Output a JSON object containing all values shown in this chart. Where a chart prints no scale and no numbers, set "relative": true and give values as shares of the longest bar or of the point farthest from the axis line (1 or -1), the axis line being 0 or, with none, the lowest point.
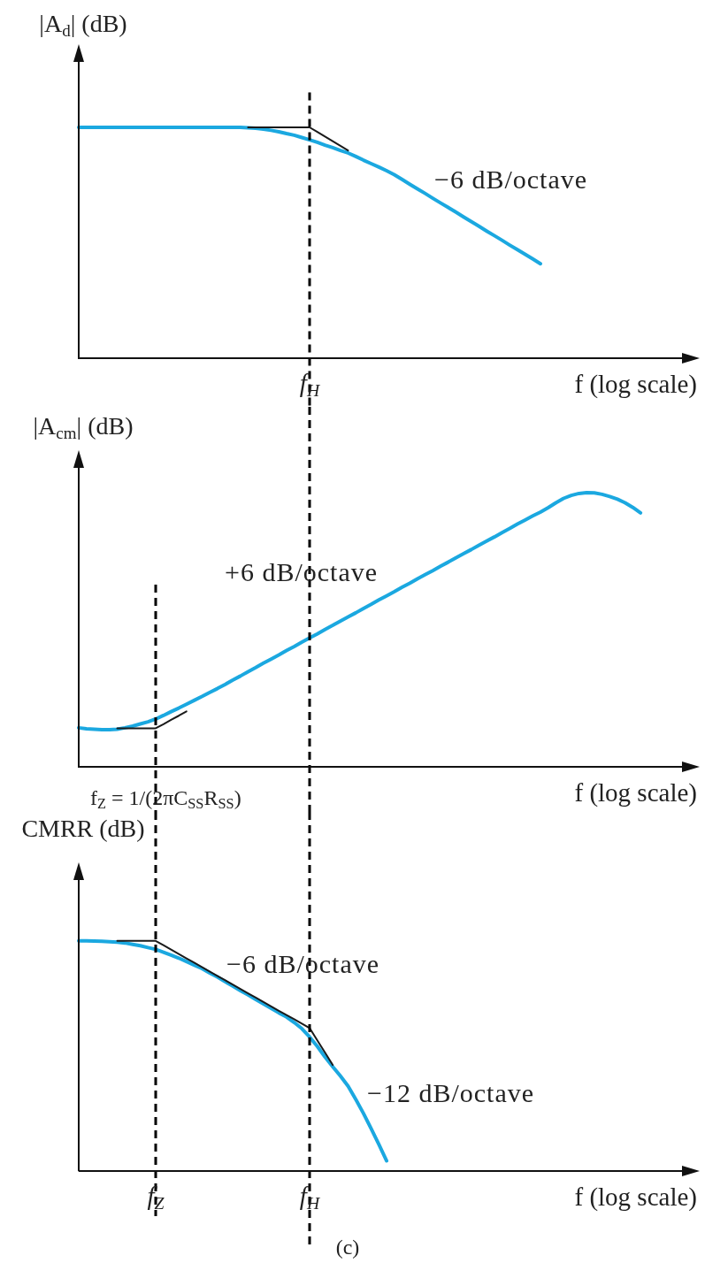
{
  "chart_data": [
    {
      "type": "line",
      "relative": true,
      "marker": "none",
      "tick_labels": false,
      "ylabel": "|A$_{d}$| (dB)",
      "xlabel": "f (log scale)",
      "categories": [
        null,
        null,
        null,
        null,
        null,
        null,
        null,
        null,
        null,
        null,
        "f$_{Z}$",
        null,
        null,
        null,
        null,
        null,
        null,
        null,
        null,
        null,
        null,
        null,
        null,
        null,
        null,
        null,
        null,
        null,
        null,
        null,
        "f$_{H}$",
        null,
        null,
        null,
        null,
        null,
        null,
        null,
        null,
        null,
        null,
        null,
        null,
        null,
        null,
        null,
        null,
        null,
        null,
        null,
        null,
        null,
        null,
        null,
        null,
        null,
        null,
        null,
        null,
        null,
        null,
        null,
        null,
        null,
        null,
        null,
        null,
        null,
        null,
        null,
        null,
        null,
        null,
        null,
        null,
        null,
        null,
        null,
        null,
        null,
        null
      ],
      "series": [
        {
          "color": "#1ba8e0",
          "values": [
            1,
            1,
            1,
            1,
            1,
            1,
            1,
            1,
            1,
            1,
            1,
            1,
            1,
            1,
            1,
            1,
            1,
            1,
            1,
            1,
            1,
            1,
            0.998,
            0.996,
            0.992,
            0.987,
            0.981,
            0.973,
            0.966,
            0.956,
            0.946,
            0.935,
            0.923,
            0.912,
            0.9,
            0.889,
            0.874,
            0.858,
            0.843,
            0.828,
            0.812,
            0.795,
            0.775,
            0.754,
            0.734,
            0.714,
            0.693,
            0.673,
            0.653,
            0.633,
            0.612,
            0.592,
            0.572,
            0.551,
            0.531,
            0.511,
            0.49,
            0.47,
            0.45,
            0.43,
            0.409,
            null,
            null,
            null,
            null,
            null,
            null,
            null,
            null,
            null,
            null,
            null,
            null,
            null,
            null,
            null,
            null,
            null,
            null,
            null,
            null
          ]
        },
        {
          "color": "#1a1a1a",
          "values": [
            null,
            null,
            null,
            null,
            null,
            null,
            null,
            null,
            null,
            null,
            null,
            null,
            null,
            null,
            null,
            null,
            null,
            null,
            null,
            null,
            null,
            null,
            1,
            1,
            1,
            1,
            1,
            1,
            1,
            1,
            1,
            0.98,
            0.96,
            0.94,
            0.92,
            0.9,
            null,
            null,
            null,
            null,
            null,
            null,
            null,
            null,
            null,
            null,
            null,
            null,
            null,
            null,
            null,
            null,
            null,
            null,
            null,
            null,
            null,
            null,
            null,
            null,
            null,
            null,
            null,
            null,
            null,
            null,
            null,
            null,
            null,
            null,
            null,
            null,
            null,
            null,
            null,
            null,
            null,
            null,
            null,
            null,
            null
          ]
        }
      ],
      "ref_lines": [
        {
          "axis": "x",
          "value": "f$_{H}$",
          "label": "f$_{H}$",
          "color": "#000000",
          "line_style": "dashed"
        }
      ],
      "annotations": [
        "−6 dB/octave"
      ]
    },
    {
      "type": "line",
      "relative": true,
      "marker": "none",
      "tick_labels": false,
      "ylabel": "|A$_{cm}$| (dB)",
      "xlabel": "f (log scale)",
      "categories": [
        null,
        null,
        null,
        null,
        null,
        null,
        null,
        null,
        null,
        null,
        "f$_{Z}$",
        null,
        null,
        null,
        null,
        null,
        null,
        null,
        null,
        null,
        null,
        null,
        null,
        null,
        null,
        null,
        null,
        null,
        null,
        null,
        "f$_{H}$",
        null,
        null,
        null,
        null,
        null,
        null,
        null,
        null,
        null,
        null,
        null,
        null,
        null,
        null,
        null,
        null,
        null,
        null,
        null,
        null,
        null,
        null,
        null,
        null,
        null,
        null,
        null,
        null,
        null,
        null,
        null,
        null,
        null,
        null,
        null,
        null,
        null,
        null,
        null,
        null,
        null,
        null,
        null,
        null,
        null,
        null,
        null,
        null,
        null,
        null
      ],
      "series": [
        {
          "color": "#1ba8e0",
          "values": [
            0.141,
            0.137,
            0.136,
            0.134,
            0.134,
            0.136,
            0.141,
            0.147,
            0.155,
            0.163,
            0.173,
            0.186,
            0.2,
            0.213,
            0.227,
            0.241,
            0.255,
            0.27,
            0.284,
            0.299,
            0.315,
            0.33,
            0.346,
            0.361,
            0.377,
            0.392,
            0.407,
            0.423,
            0.438,
            0.454,
            0.469,
            0.484,
            0.5,
            0.515,
            0.531,
            0.546,
            0.561,
            0.577,
            0.592,
            0.608,
            0.623,
            0.638,
            0.654,
            0.669,
            0.685,
            0.7,
            0.715,
            0.731,
            0.746,
            0.762,
            0.777,
            0.792,
            0.808,
            0.823,
            0.838,
            0.854,
            0.869,
            0.885,
            0.9,
            0.915,
            0.929,
            0.945,
            0.963,
            0.979,
            0.99,
            0.997,
            1,
            0.999,
            0.994,
            0.986,
            0.976,
            0.963,
            0.946,
            0.926,
            null,
            null,
            null,
            null,
            null,
            null,
            null
          ]
        },
        {
          "color": "#1a1a1a",
          "values": [
            null,
            null,
            null,
            null,
            null,
            0.139,
            0.139,
            0.139,
            0.139,
            0.139,
            0.139,
            0.154,
            0.17,
            0.185,
            0.201,
            null,
            null,
            null,
            null,
            null,
            null,
            null,
            null,
            null,
            null,
            null,
            null,
            null,
            null,
            null,
            null,
            null,
            null,
            null,
            null,
            null,
            null,
            null,
            null,
            null,
            null,
            null,
            null,
            null,
            null,
            null,
            null,
            null,
            null,
            null,
            null,
            null,
            null,
            null,
            null,
            null,
            null,
            null,
            null,
            null,
            null,
            null,
            null,
            null,
            null,
            null,
            null,
            null,
            null,
            null,
            null,
            null,
            null,
            null,
            null,
            null,
            null,
            null,
            null,
            null,
            null
          ]
        }
      ],
      "ref_lines": [
        {
          "axis": "x",
          "value": "f$_{Z}$",
          "color": "#000000",
          "line_style": "dashed"
        },
        {
          "axis": "x",
          "value": "f$_{H}$",
          "color": "#000000",
          "line_style": "dashed"
        }
      ],
      "annotations": [
        "+6 dB/octave",
        "f$_{Z}$ = 1/(2πC$_{SS}$R$_{SS}$)"
      ]
    },
    {
      "type": "line",
      "relative": true,
      "marker": "none",
      "ylabel": "CMRR (dB)",
      "xlabel": "f (log scale)",
      "categories": [
        null,
        null,
        null,
        null,
        null,
        null,
        null,
        null,
        null,
        null,
        "f$_{Z}$",
        null,
        null,
        null,
        null,
        null,
        null,
        null,
        null,
        null,
        null,
        null,
        null,
        null,
        null,
        null,
        null,
        null,
        null,
        null,
        "f$_{H}$",
        null,
        null,
        null,
        null,
        null,
        null,
        null,
        null,
        null,
        null,
        null,
        null,
        null,
        null,
        null,
        null,
        null,
        null,
        null,
        null,
        null,
        null,
        null,
        null,
        null,
        null,
        null,
        null,
        null,
        null,
        null,
        null,
        null,
        null,
        null,
        null,
        null,
        null,
        null,
        null,
        null,
        null,
        null,
        null,
        null,
        null,
        null,
        null,
        null,
        null
      ],
      "series": [
        {
          "color": "#1ba8e0",
          "values": [
            1,
            1,
            0.999,
            0.998,
            0.996,
            0.994,
            0.991,
            0.985,
            0.979,
            0.971,
            0.963,
            0.951,
            0.938,
            0.925,
            0.91,
            0.895,
            0.88,
            0.861,
            0.843,
            0.823,
            0.804,
            0.784,
            0.765,
            0.745,
            0.726,
            0.707,
            0.687,
            0.669,
            0.645,
            0.618,
            0.582,
            0.541,
            0.495,
            0.453,
            0.412,
            0.368,
            0.31,
            0.249,
            0.183,
            0.114,
            0.043,
            null,
            null,
            null,
            null,
            null,
            null,
            null,
            null,
            null,
            null,
            null,
            null,
            null,
            null,
            null,
            null,
            null,
            null,
            null,
            null,
            null,
            null,
            null,
            null,
            null,
            null,
            null,
            null,
            null,
            null,
            null,
            null,
            null,
            null,
            null,
            null,
            null,
            null,
            null,
            null
          ]
        },
        {
          "color": "#1a1a1a",
          "values": [
            null,
            null,
            null,
            null,
            null,
            1,
            1,
            1,
            1,
            1,
            1,
            0.981,
            0.962,
            0.943,
            0.924,
            0.905,
            0.886,
            0.867,
            0.848,
            0.829,
            0.81,
            0.791,
            0.772,
            0.753,
            0.734,
            0.715,
            0.696,
            0.677,
            0.659,
            0.64,
            0.621,
            0.567,
            0.514,
            0.46,
            null,
            null,
            null,
            null,
            null,
            null,
            null,
            null,
            null,
            null,
            null,
            null,
            null,
            null,
            null,
            null,
            null,
            null,
            null,
            null,
            null,
            null,
            null,
            null,
            null,
            null,
            null,
            null,
            null,
            null,
            null,
            null,
            null,
            null,
            null,
            null,
            null,
            null,
            null,
            null,
            null,
            null,
            null,
            null,
            null,
            null,
            null
          ]
        }
      ],
      "ref_lines": [
        {
          "axis": "x",
          "value": "f$_{Z}$",
          "color": "#000000",
          "line_style": "dashed"
        },
        {
          "axis": "x",
          "value": "f$_{H}$",
          "color": "#000000",
          "line_style": "dashed"
        }
      ],
      "annotations": [
        "−6 dB/octave",
        "−12 dB/octave",
        "(c)"
      ]
    }
  ]
}
